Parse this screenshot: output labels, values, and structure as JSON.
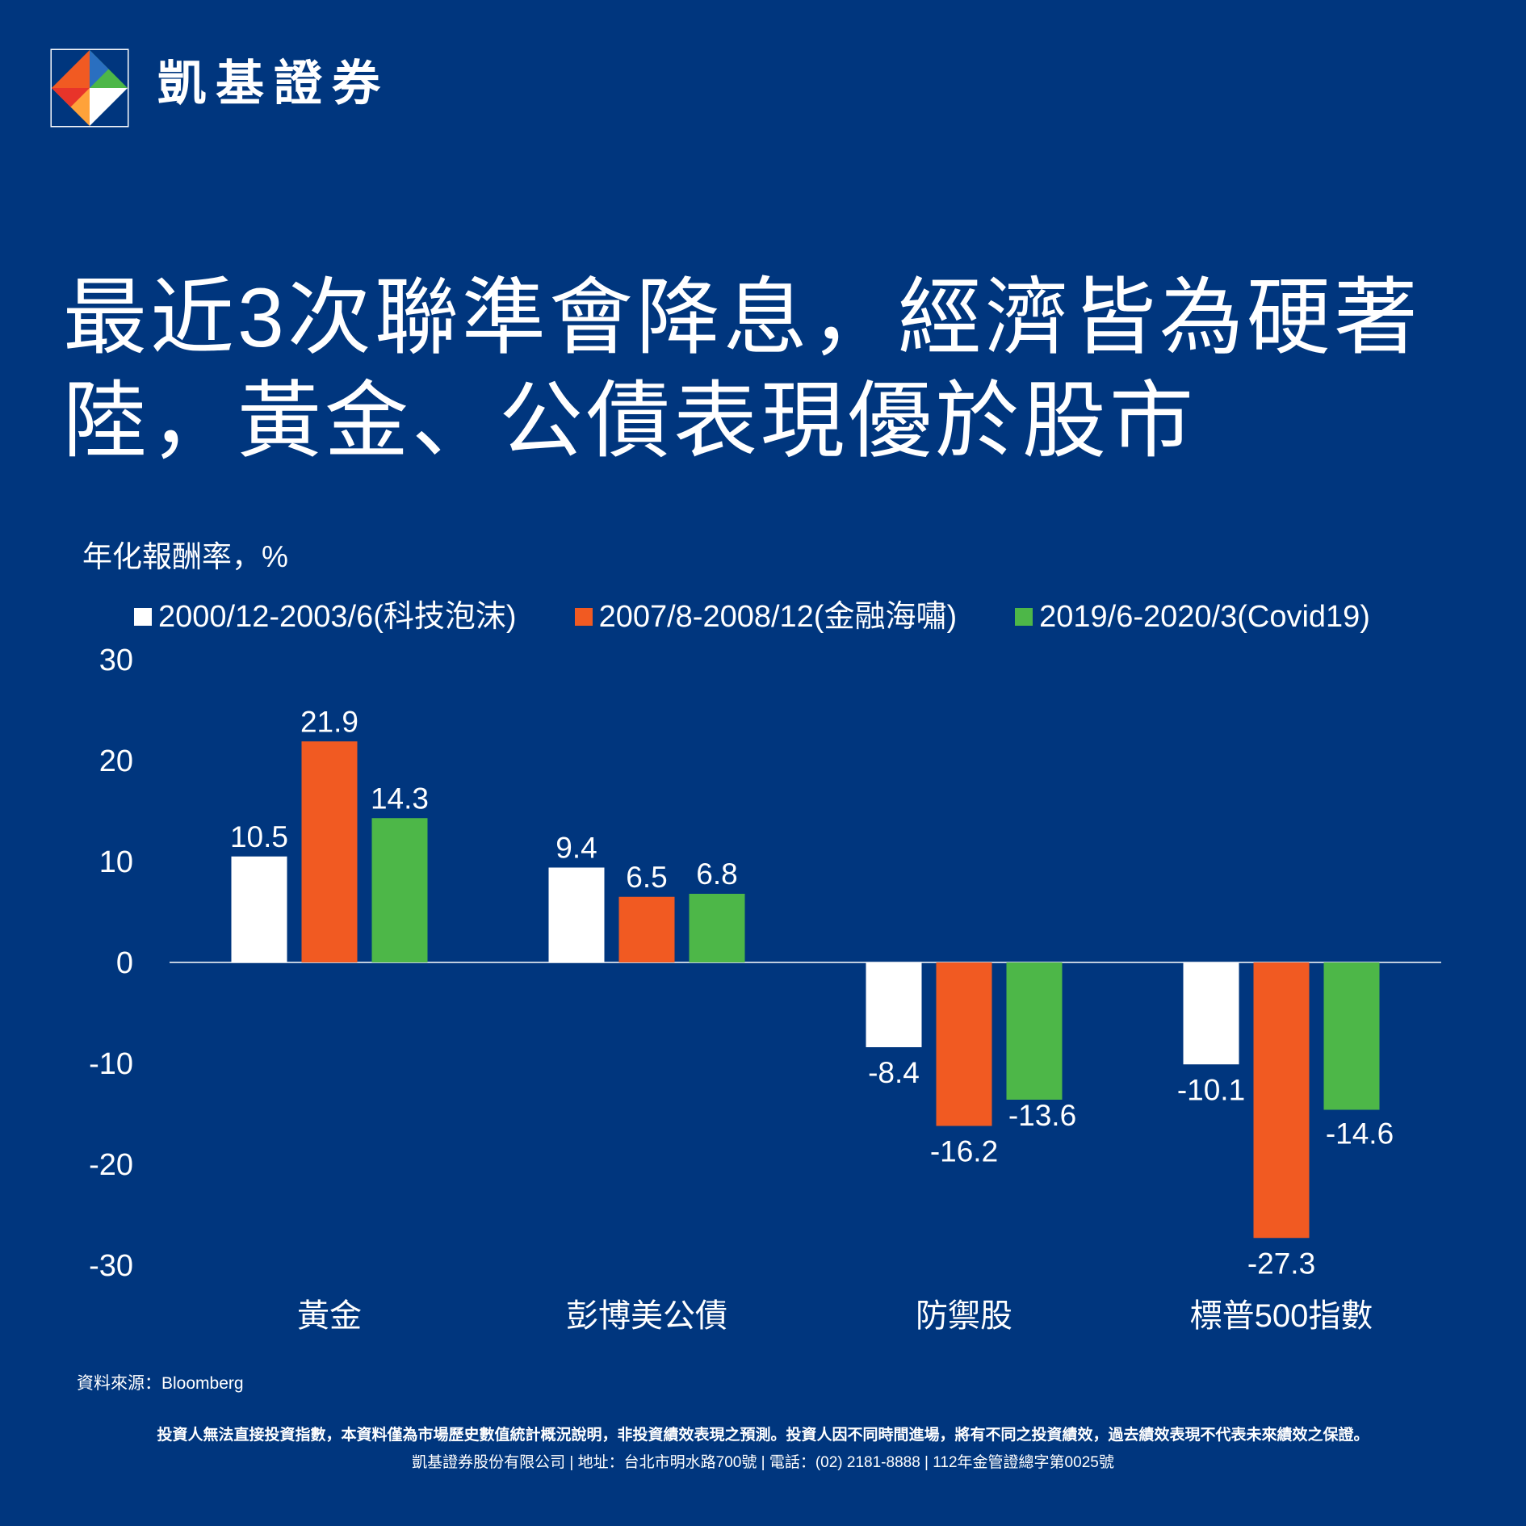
{
  "brand": {
    "name": "凱基證券",
    "colors": {
      "background": "#00367e",
      "orange": "#f15a22",
      "green": "#4db748",
      "white": "#ffffff",
      "blue": "#2a6fc0"
    }
  },
  "title_lines": [
    "最近3次聯準會降息，經濟皆為硬著",
    "陸，黃金、公債表現優於股市"
  ],
  "chart_data": {
    "type": "bar",
    "title": "最近3次聯準會降息，經濟皆為硬著陸，黃金、公債表現優於股市",
    "ylabel": "年化報酬率，%",
    "xlabel": "",
    "ylim": [
      -30,
      30
    ],
    "yticks": [
      "30",
      "20",
      "10",
      "0",
      "-10",
      "-20",
      "-30"
    ],
    "ytick_values": [
      30,
      20,
      10,
      0,
      -10,
      -20,
      -30
    ],
    "categories": [
      "黃金",
      "彭博美公債",
      "防禦股",
      "標普500指數"
    ],
    "legend_position": "top",
    "grid": false,
    "series": [
      {
        "name": "2000/12-2003/6(科技泡沫)",
        "color": "#ffffff",
        "values": [
          10.5,
          9.4,
          -8.4,
          -10.1
        ],
        "labels": [
          "10.5",
          "9.4",
          "-8.4",
          "-10.1"
        ]
      },
      {
        "name": "2007/8-2008/12(金融海嘯)",
        "color": "#f15a22",
        "values": [
          21.9,
          6.5,
          -16.2,
          -27.3
        ],
        "labels": [
          "21.9",
          "6.5",
          "-16.2",
          "-27.3"
        ]
      },
      {
        "name": "2019/6-2020/3(Covid19)",
        "color": "#4db748",
        "values": [
          14.3,
          6.8,
          -13.6,
          -14.6
        ],
        "labels": [
          "14.3",
          "6.8",
          "-13.6",
          "-14.6"
        ]
      }
    ]
  },
  "source": "資料來源：Bloomberg",
  "footer": {
    "disclaimer": "投資人無法直接投資指數，本資料僅為市場歷史數值統計概況說明，非投資績效表現之預測。投資人因不同時間進場，將有不同之投資績效，過去績效表現不代表未來績效之保證。",
    "company": "凱基證券股份有限公司 | 地址：台北市明水路700號 | 電話：(02) 2181-8888 | 112年金管證總字第0025號"
  }
}
